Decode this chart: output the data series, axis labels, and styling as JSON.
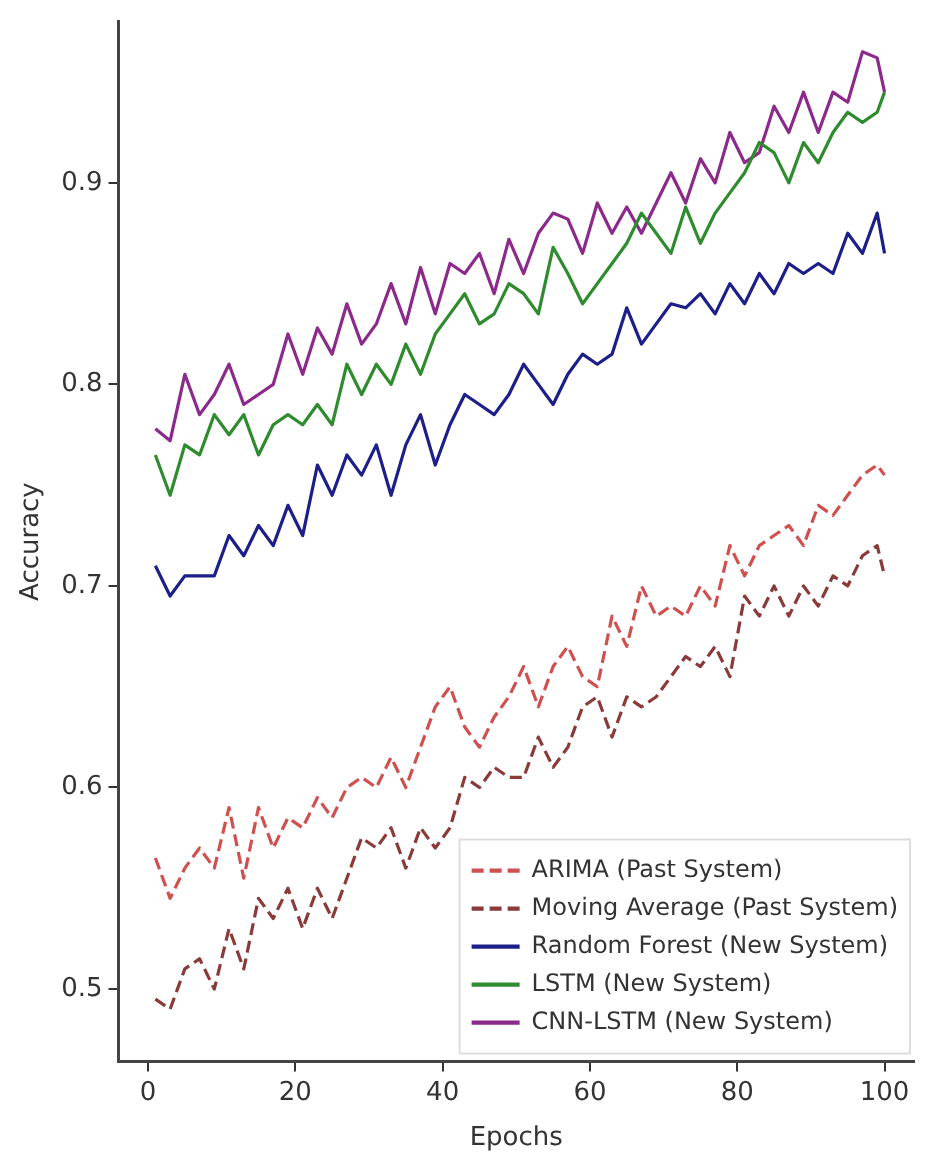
{
  "chart_data": {
    "type": "line",
    "xlabel": "Epochs",
    "ylabel": "Accuracy",
    "x": [
      1,
      3,
      5,
      7,
      9,
      11,
      13,
      15,
      17,
      19,
      21,
      23,
      25,
      27,
      29,
      31,
      33,
      35,
      37,
      39,
      41,
      43,
      45,
      47,
      49,
      51,
      53,
      55,
      57,
      59,
      61,
      63,
      65,
      67,
      69,
      71,
      73,
      75,
      77,
      79,
      81,
      83,
      85,
      87,
      89,
      91,
      93,
      95,
      97,
      99,
      100
    ],
    "series": [
      {
        "name": "ARIMA (Past System)",
        "color": "#d0504f",
        "line_style": "dashed",
        "values": [
          0.565,
          0.545,
          0.56,
          0.57,
          0.56,
          0.59,
          0.555,
          0.59,
          0.57,
          0.585,
          0.58,
          0.595,
          0.585,
          0.6,
          0.605,
          0.6,
          0.615,
          0.6,
          0.62,
          0.64,
          0.65,
          0.63,
          0.62,
          0.635,
          0.645,
          0.66,
          0.64,
          0.66,
          0.67,
          0.655,
          0.65,
          0.685,
          0.67,
          0.7,
          0.685,
          0.69,
          0.685,
          0.7,
          0.69,
          0.72,
          0.705,
          0.72,
          0.725,
          0.73,
          0.72,
          0.74,
          0.735,
          0.745,
          0.755,
          0.76,
          0.755
        ]
      },
      {
        "name": "Moving Average (Past System)",
        "color": "#8b3a3a",
        "line_style": "dashed",
        "values": [
          0.495,
          0.49,
          0.51,
          0.515,
          0.5,
          0.53,
          0.51,
          0.545,
          0.535,
          0.55,
          0.53,
          0.55,
          0.535,
          0.555,
          0.575,
          0.57,
          0.58,
          0.56,
          0.58,
          0.57,
          0.58,
          0.605,
          0.6,
          0.61,
          0.605,
          0.605,
          0.625,
          0.61,
          0.62,
          0.64,
          0.645,
          0.625,
          0.645,
          0.64,
          0.645,
          0.655,
          0.665,
          0.66,
          0.67,
          0.655,
          0.695,
          0.685,
          0.7,
          0.685,
          0.7,
          0.69,
          0.705,
          0.7,
          0.715,
          0.72,
          0.705
        ]
      },
      {
        "name": "Random Forest (New System)",
        "color": "#1c1f8a",
        "line_style": "solid",
        "values": [
          0.71,
          0.695,
          0.705,
          0.705,
          0.705,
          0.725,
          0.715,
          0.73,
          0.72,
          0.74,
          0.725,
          0.76,
          0.745,
          0.765,
          0.755,
          0.77,
          0.745,
          0.77,
          0.785,
          0.76,
          0.78,
          0.795,
          0.79,
          0.785,
          0.795,
          0.81,
          0.8,
          0.79,
          0.805,
          0.815,
          0.81,
          0.815,
          0.838,
          0.82,
          0.83,
          0.84,
          0.838,
          0.845,
          0.835,
          0.85,
          0.84,
          0.855,
          0.845,
          0.86,
          0.855,
          0.86,
          0.855,
          0.875,
          0.865,
          0.885,
          0.865
        ]
      },
      {
        "name": "LSTM (New System)",
        "color": "#2e8b2e",
        "line_style": "solid",
        "values": [
          0.765,
          0.745,
          0.77,
          0.765,
          0.785,
          0.775,
          0.785,
          0.765,
          0.78,
          0.785,
          0.78,
          0.79,
          0.78,
          0.81,
          0.795,
          0.81,
          0.8,
          0.82,
          0.805,
          0.825,
          0.835,
          0.845,
          0.83,
          0.835,
          0.85,
          0.845,
          0.835,
          0.868,
          0.855,
          0.84,
          0.85,
          0.86,
          0.87,
          0.885,
          0.875,
          0.865,
          0.888,
          0.87,
          0.885,
          0.895,
          0.905,
          0.92,
          0.915,
          0.9,
          0.92,
          0.91,
          0.925,
          0.935,
          0.93,
          0.935,
          0.945
        ]
      },
      {
        "name": "CNN-LSTM (New System)",
        "color": "#8b2a8b",
        "line_style": "solid",
        "values": [
          0.778,
          0.772,
          0.805,
          0.785,
          0.795,
          0.81,
          0.79,
          0.795,
          0.8,
          0.825,
          0.805,
          0.828,
          0.815,
          0.84,
          0.82,
          0.83,
          0.85,
          0.83,
          0.858,
          0.835,
          0.86,
          0.855,
          0.865,
          0.845,
          0.872,
          0.855,
          0.875,
          0.885,
          0.882,
          0.865,
          0.89,
          0.875,
          0.888,
          0.875,
          0.89,
          0.905,
          0.89,
          0.912,
          0.9,
          0.925,
          0.91,
          0.915,
          0.938,
          0.925,
          0.945,
          0.925,
          0.945,
          0.94,
          0.965,
          0.962,
          0.945
        ]
      }
    ],
    "xlim": [
      -4,
      104
    ],
    "xticks": [
      0,
      20,
      40,
      60,
      80,
      100
    ],
    "ylim": [
      0.464,
      0.98
    ],
    "yticks": [
      0.5,
      0.6,
      0.7,
      0.8,
      0.9
    ],
    "legend": "bottom right",
    "marker": "none",
    "grid": false
  }
}
